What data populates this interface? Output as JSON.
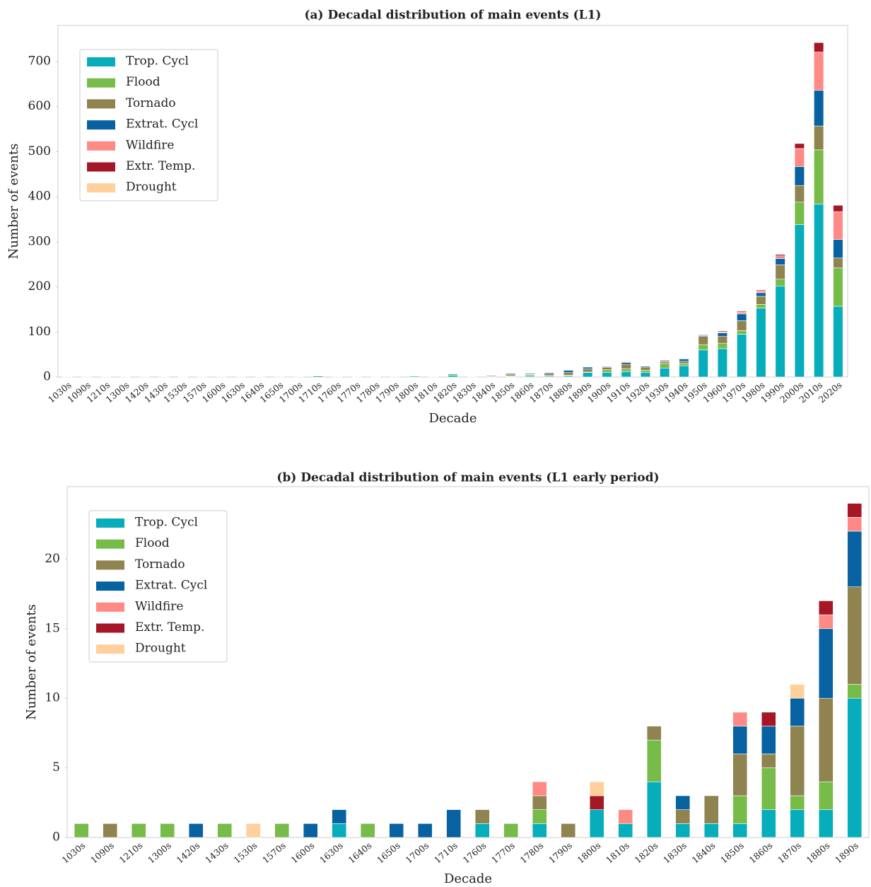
{
  "chart_data": [
    {
      "type": "bar",
      "stacked": true,
      "title": "(a)  Decadal distribution of main events (L1)",
      "xlabel": "Decade",
      "ylabel": "Number of events",
      "categories": [
        "1030s",
        "1090s",
        "1210s",
        "1300s",
        "1420s",
        "1430s",
        "1530s",
        "1570s",
        "1600s",
        "1630s",
        "1640s",
        "1650s",
        "1700s",
        "1710s",
        "1760s",
        "1770s",
        "1780s",
        "1790s",
        "1800s",
        "1810s",
        "1820s",
        "1830s",
        "1840s",
        "1850s",
        "1860s",
        "1870s",
        "1880s",
        "1890s",
        "1900s",
        "1910s",
        "1920s",
        "1930s",
        "1940s",
        "1950s",
        "1960s",
        "1970s",
        "1980s",
        "1990s",
        "2000s",
        "2010s",
        "2020s"
      ],
      "series": [
        {
          "name": "Trop. Cycl",
          "color": "#08adbb",
          "values": [
            0,
            0,
            0,
            0,
            0,
            0,
            0,
            0,
            0,
            1,
            0,
            0,
            0,
            0,
            1,
            0,
            1,
            0,
            2,
            1,
            4,
            1,
            1,
            1,
            2,
            2,
            2,
            10,
            10,
            12,
            10,
            20,
            25,
            60,
            63,
            95,
            153,
            202,
            338,
            384,
            157
          ]
        },
        {
          "name": "Flood",
          "color": "#77bb48",
          "values": [
            1,
            0,
            1,
            1,
            0,
            1,
            0,
            1,
            0,
            0,
            1,
            0,
            0,
            0,
            0,
            1,
            1,
            0,
            0,
            0,
            3,
            0,
            0,
            2,
            3,
            1,
            2,
            1,
            6,
            6,
            5,
            10,
            5,
            12,
            12,
            8,
            8,
            15,
            50,
            120,
            85
          ]
        },
        {
          "name": "Tornado",
          "color": "#8f8450",
          "values": [
            0,
            1,
            0,
            0,
            0,
            0,
            0,
            0,
            0,
            0,
            0,
            0,
            0,
            0,
            1,
            0,
            1,
            1,
            0,
            0,
            1,
            1,
            2,
            3,
            1,
            5,
            6,
            7,
            5,
            10,
            7,
            4,
            5,
            18,
            15,
            22,
            18,
            32,
            37,
            53,
            22
          ]
        },
        {
          "name": "Extrat. Cycl",
          "color": "#0862a2",
          "values": [
            0,
            0,
            0,
            0,
            1,
            0,
            0,
            0,
            1,
            1,
            0,
            1,
            1,
            2,
            0,
            0,
            0,
            0,
            0,
            0,
            0,
            1,
            0,
            2,
            2,
            2,
            5,
            4,
            2,
            4,
            2,
            2,
            5,
            2,
            8,
            15,
            8,
            14,
            42,
            79,
            41
          ]
        },
        {
          "name": "Wildfire",
          "color": "#ff8a85",
          "values": [
            0,
            0,
            0,
            0,
            0,
            0,
            0,
            0,
            0,
            0,
            0,
            0,
            0,
            0,
            0,
            0,
            1,
            0,
            0,
            1,
            0,
            0,
            0,
            1,
            0,
            0,
            1,
            1,
            1,
            2,
            0,
            2,
            0,
            2,
            2,
            4,
            4,
            6,
            40,
            85,
            62
          ]
        },
        {
          "name": "Extr. Temp.",
          "color": "#a51626",
          "values": [
            0,
            0,
            0,
            0,
            0,
            0,
            0,
            0,
            0,
            0,
            0,
            0,
            0,
            0,
            0,
            0,
            0,
            0,
            1,
            0,
            0,
            0,
            0,
            0,
            1,
            0,
            1,
            1,
            0,
            1,
            0,
            0,
            0,
            0,
            2,
            2,
            2,
            3,
            11,
            21,
            14
          ]
        },
        {
          "name": "Drought",
          "color": "#ffd09c",
          "values": [
            0,
            0,
            0,
            0,
            0,
            0,
            1,
            0,
            0,
            0,
            0,
            0,
            0,
            0,
            0,
            0,
            0,
            0,
            1,
            0,
            0,
            0,
            0,
            0,
            0,
            1,
            0,
            0,
            0,
            0,
            0,
            0,
            0,
            0,
            0,
            0,
            0,
            0,
            0,
            0,
            0
          ]
        }
      ],
      "ylim": [
        0,
        780
      ],
      "yticks": [
        0,
        100,
        200,
        300,
        400,
        500,
        600,
        700
      ],
      "grid": false,
      "legend": "upper left"
    },
    {
      "type": "bar",
      "stacked": true,
      "title": "(b)  Decadal distribution of main events (L1 early period)",
      "xlabel": "Decade",
      "ylabel": "Number of events",
      "categories": [
        "1030s",
        "1090s",
        "1210s",
        "1300s",
        "1420s",
        "1430s",
        "1530s",
        "1570s",
        "1600s",
        "1630s",
        "1640s",
        "1650s",
        "1700s",
        "1710s",
        "1760s",
        "1770s",
        "1780s",
        "1790s",
        "1800s",
        "1810s",
        "1820s",
        "1830s",
        "1840s",
        "1850s",
        "1860s",
        "1870s",
        "1880s",
        "1890s"
      ],
      "series": [
        {
          "name": "Trop. Cycl",
          "color": "#08adbb",
          "values": [
            0,
            0,
            0,
            0,
            0,
            0,
            0,
            0,
            0,
            1,
            0,
            0,
            0,
            0,
            1,
            0,
            1,
            0,
            2,
            1,
            4,
            1,
            1,
            1,
            2,
            2,
            2,
            10
          ]
        },
        {
          "name": "Flood",
          "color": "#77bb48",
          "values": [
            1,
            0,
            1,
            1,
            0,
            1,
            0,
            1,
            0,
            0,
            1,
            0,
            0,
            0,
            0,
            1,
            1,
            0,
            0,
            0,
            3,
            0,
            0,
            2,
            3,
            1,
            2,
            1
          ]
        },
        {
          "name": "Tornado",
          "color": "#8f8450",
          "values": [
            0,
            1,
            0,
            0,
            0,
            0,
            0,
            0,
            0,
            0,
            0,
            0,
            0,
            0,
            1,
            0,
            1,
            1,
            0,
            0,
            1,
            1,
            2,
            3,
            1,
            5,
            6,
            7
          ]
        },
        {
          "name": "Extrat. Cycl",
          "color": "#0862a2",
          "values": [
            0,
            0,
            0,
            0,
            1,
            0,
            0,
            0,
            1,
            1,
            0,
            1,
            1,
            2,
            0,
            0,
            0,
            0,
            0,
            0,
            0,
            1,
            0,
            2,
            2,
            2,
            5,
            4
          ]
        },
        {
          "name": "Wildfire",
          "color": "#ff8a85",
          "values": [
            0,
            0,
            0,
            0,
            0,
            0,
            0,
            0,
            0,
            0,
            0,
            0,
            0,
            0,
            0,
            0,
            1,
            0,
            0,
            1,
            0,
            0,
            0,
            1,
            0,
            0,
            1,
            1
          ]
        },
        {
          "name": "Extr. Temp.",
          "color": "#a51626",
          "values": [
            0,
            0,
            0,
            0,
            0,
            0,
            0,
            0,
            0,
            0,
            0,
            0,
            0,
            0,
            0,
            0,
            0,
            0,
            1,
            0,
            0,
            0,
            0,
            0,
            1,
            0,
            1,
            1
          ]
        },
        {
          "name": "Drought",
          "color": "#ffd09c",
          "values": [
            0,
            0,
            0,
            0,
            0,
            0,
            1,
            0,
            0,
            0,
            0,
            0,
            0,
            0,
            0,
            0,
            0,
            0,
            1,
            0,
            0,
            0,
            0,
            0,
            0,
            1,
            0,
            0
          ]
        }
      ],
      "ylim": [
        0,
        25.2
      ],
      "yticks": [
        0,
        5,
        10,
        15,
        20
      ],
      "grid": false,
      "legend": "upper left"
    }
  ]
}
